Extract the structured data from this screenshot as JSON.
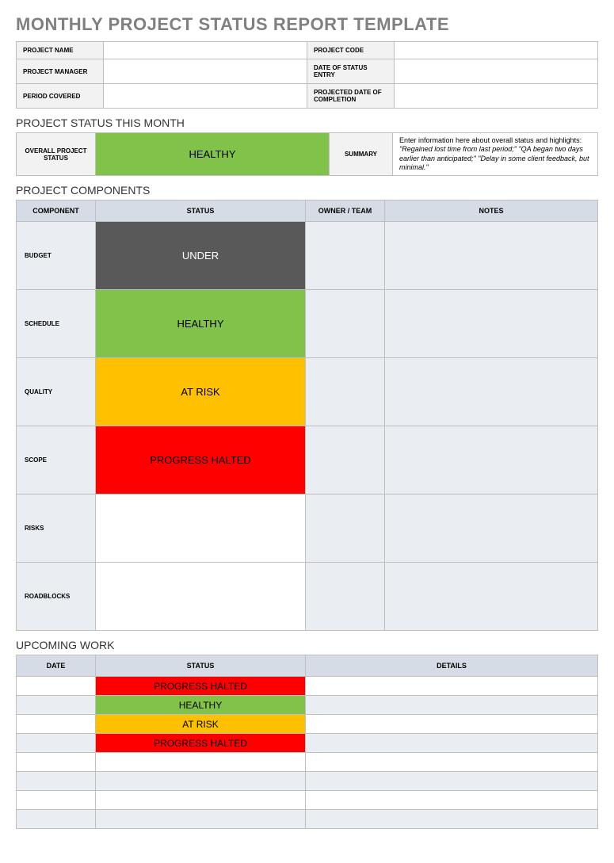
{
  "colors": {
    "healthy": "#80c24a",
    "under": "#595959",
    "at_risk": "#ffc000",
    "halted": "#ff0000",
    "header_bg": "#d6dce5",
    "alt_row": "#eaedf2",
    "label_bg": "#f2f2f2",
    "border": "#bfbfbf",
    "title_gray": "#808080",
    "white_text": "#ffffff",
    "black_text": "#000000"
  },
  "title": "MONTHLY PROJECT STATUS REPORT TEMPLATE",
  "info": {
    "rows": [
      {
        "l1": "PROJECT NAME",
        "v1": "",
        "l2": "PROJECT CODE",
        "v2": ""
      },
      {
        "l1": "PROJECT MANAGER",
        "v1": "",
        "l2": "DATE OF STATUS ENTRY",
        "v2": ""
      },
      {
        "l1": "PERIOD COVERED",
        "v1": "",
        "l2": "PROJECTED DATE OF COMPLETION",
        "v2": ""
      }
    ]
  },
  "status_section": {
    "heading": "PROJECT STATUS THIS MONTH",
    "overall_label": "OVERALL PROJECT STATUS",
    "overall_status": "HEALTHY",
    "overall_status_bg": "#80c24a",
    "overall_status_color": "#000000",
    "summary_label": "SUMMARY",
    "summary_lead": "Enter information here about overall status and highlights: ",
    "summary_italic": "\"Regained lost time from last period;\" \"QA began two days earlier than anticipated;\" \"Delay in some client feedback, but minimal.\""
  },
  "components_section": {
    "heading": "PROJECT COMPONENTS",
    "columns": [
      "COMPONENT",
      "STATUS",
      "OWNER / TEAM",
      "NOTES"
    ],
    "rows": [
      {
        "label": "BUDGET",
        "status": "UNDER",
        "bg": "#595959",
        "fg": "#ffffff",
        "owner": "",
        "notes": ""
      },
      {
        "label": "SCHEDULE",
        "status": "HEALTHY",
        "bg": "#80c24a",
        "fg": "#000000",
        "owner": "",
        "notes": ""
      },
      {
        "label": "QUALITY",
        "status": "AT RISK",
        "bg": "#ffc000",
        "fg": "#000000",
        "owner": "",
        "notes": ""
      },
      {
        "label": "SCOPE",
        "status": "PROGRESS HALTED",
        "bg": "#ff0000",
        "fg": "#000000",
        "owner": "",
        "notes": ""
      },
      {
        "label": "RISKS",
        "status": "",
        "bg": "#ffffff",
        "fg": "#000000",
        "owner": "",
        "notes": ""
      },
      {
        "label": "ROADBLOCKS",
        "status": "",
        "bg": "#ffffff",
        "fg": "#000000",
        "owner": "",
        "notes": ""
      }
    ]
  },
  "upcoming_section": {
    "heading": "UPCOMING WORK",
    "columns": [
      "DATE",
      "STATUS",
      "DETAILS"
    ],
    "rows": [
      {
        "date": "",
        "status": "PROGRESS HALTED",
        "bg": "#ff0000",
        "fg": "#000000",
        "details": "",
        "alt": false
      },
      {
        "date": "",
        "status": "HEALTHY",
        "bg": "#80c24a",
        "fg": "#000000",
        "details": "",
        "alt": true
      },
      {
        "date": "",
        "status": "AT RISK",
        "bg": "#ffc000",
        "fg": "#000000",
        "details": "",
        "alt": false
      },
      {
        "date": "",
        "status": "PROGRESS HALTED",
        "bg": "#ff0000",
        "fg": "#000000",
        "details": "",
        "alt": true
      },
      {
        "date": "",
        "status": "",
        "bg": "",
        "fg": "#000000",
        "details": "",
        "alt": false
      },
      {
        "date": "",
        "status": "",
        "bg": "",
        "fg": "#000000",
        "details": "",
        "alt": true
      },
      {
        "date": "",
        "status": "",
        "bg": "",
        "fg": "#000000",
        "details": "",
        "alt": false
      },
      {
        "date": "",
        "status": "",
        "bg": "",
        "fg": "#000000",
        "details": "",
        "alt": true
      }
    ]
  }
}
